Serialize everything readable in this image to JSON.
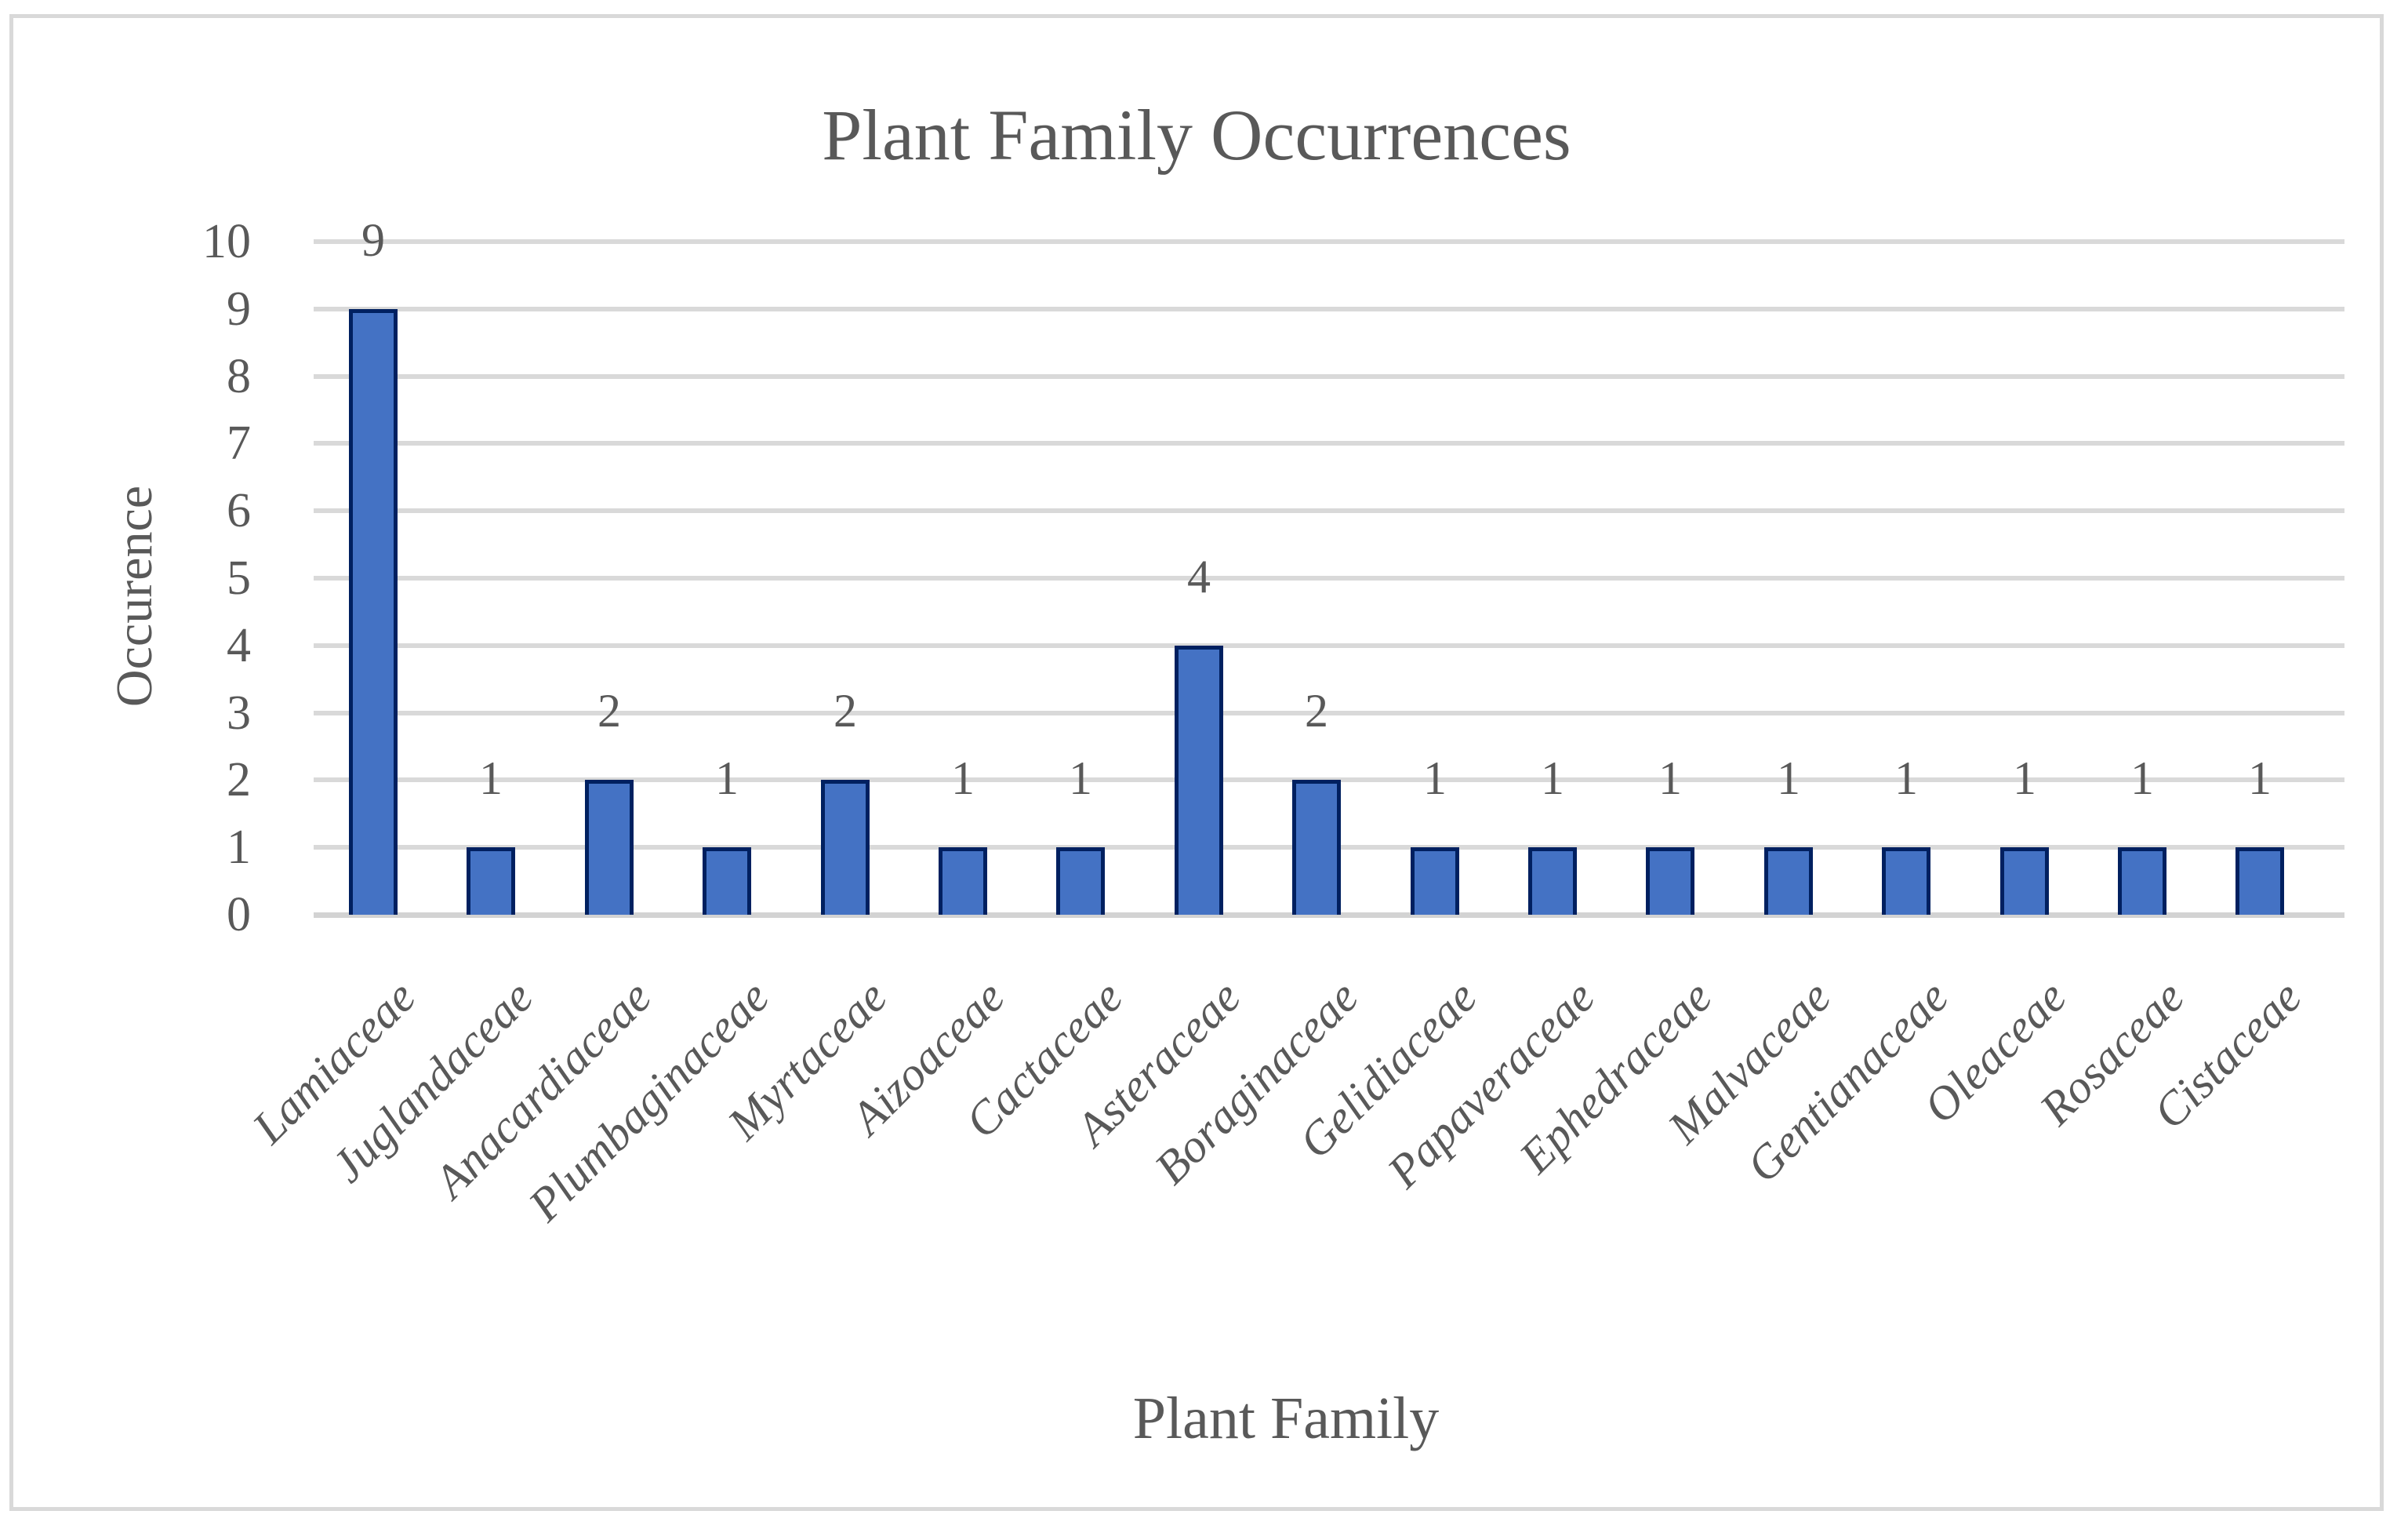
{
  "chart_data": {
    "type": "bar",
    "title": "Plant Family Occurrences",
    "xlabel": "Plant Family",
    "ylabel": "Occurence",
    "categories": [
      "Lamiaceae",
      "Juglandaceae",
      "Anacardiaceae",
      "Plumbaginaceae",
      "Myrtaceae",
      "Aizoaceae",
      "Cactaceae",
      "Asteraceae",
      "Boraginaceae",
      "Gelidiaceae",
      "Papaveraceae",
      "Ephedraceae",
      "Malvaceae",
      "Gentianaceae",
      "Oleaceae",
      "Rosaceae",
      "Cistaceae"
    ],
    "values": [
      9,
      1,
      2,
      1,
      2,
      1,
      1,
      4,
      2,
      1,
      1,
      1,
      1,
      1,
      1,
      1,
      1
    ],
    "data_labels": [
      9,
      1,
      2,
      1,
      2,
      1,
      1,
      4,
      2,
      1,
      1,
      1,
      1,
      1,
      1,
      1,
      1
    ],
    "ylim": [
      0,
      10
    ],
    "yticks": [
      0,
      1,
      2,
      3,
      4,
      5,
      6,
      7,
      8,
      9,
      10
    ],
    "grid": true,
    "legend_position": "none",
    "colors": {
      "bar_fill": "#4472C4",
      "bar_border": "#002060",
      "gridline": "#D9D9D9",
      "text": "#595959",
      "frame_border": "#D9D9D9"
    }
  }
}
